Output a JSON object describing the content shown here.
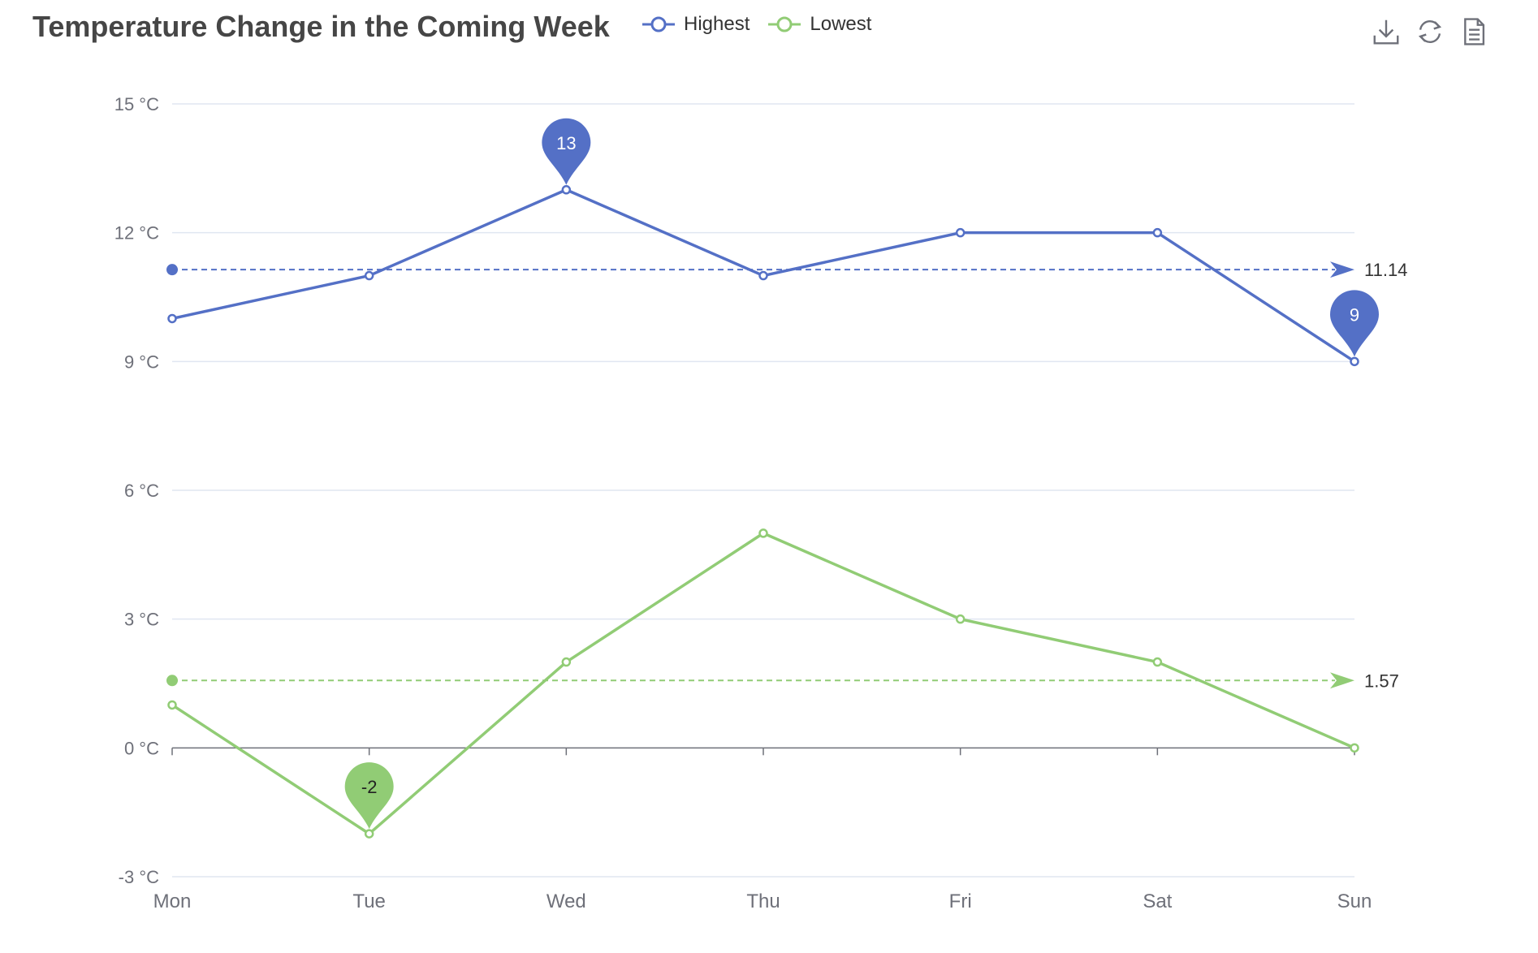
{
  "title": "Temperature Change in the Coming Week",
  "toolbox": {
    "icons": [
      "download-icon",
      "refresh-icon",
      "data-view-icon"
    ]
  },
  "colors": {
    "highest": "#5470c6",
    "lowest": "#91cc75",
    "axis": "#6e7079",
    "grid": "#e0e6f1",
    "text": "#464646"
  },
  "chart_data": {
    "type": "line",
    "title": "Temperature Change in the Coming Week",
    "categories": [
      "Mon",
      "Tue",
      "Wed",
      "Thu",
      "Fri",
      "Sat",
      "Sun"
    ],
    "y_ticks": [
      "-3 °C",
      "0 °C",
      "3 °C",
      "6 °C",
      "9 °C",
      "12 °C",
      "15 °C"
    ],
    "ylim": [
      -3,
      15
    ],
    "y_unit": "°C",
    "grid": true,
    "legend_position": "top",
    "series": [
      {
        "name": "Highest",
        "values": [
          10,
          11,
          13,
          11,
          12,
          12,
          9
        ],
        "mark_points": [
          {
            "category": "Wed",
            "value": 13,
            "label": "13"
          },
          {
            "category": "Sun",
            "value": 9,
            "label": "9"
          }
        ],
        "mark_line": {
          "value": 11.14,
          "label": "11.14"
        }
      },
      {
        "name": "Lowest",
        "values": [
          1,
          -2,
          2,
          5,
          3,
          2,
          0
        ],
        "mark_points": [
          {
            "category": "Tue",
            "value": -2,
            "label": "-2"
          }
        ],
        "mark_line": {
          "value": 1.57,
          "label": "1.57"
        }
      }
    ]
  }
}
